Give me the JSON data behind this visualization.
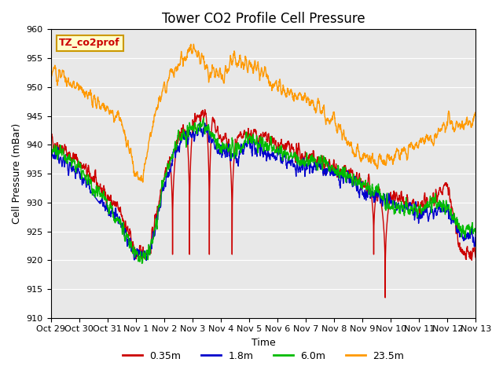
{
  "title": "Tower CO2 Profile Cell Pressure",
  "ylabel": "Cell Pressure (mBar)",
  "xlabel": "Time",
  "xlim_days": 15,
  "ylim": [
    910,
    960
  ],
  "yticks": [
    910,
    915,
    920,
    925,
    930,
    935,
    940,
    945,
    950,
    955,
    960
  ],
  "xtick_labels": [
    "Oct 29",
    "Oct 30",
    "Oct 31",
    "Nov 1",
    "Nov 2",
    "Nov 3",
    "Nov 4",
    "Nov 5",
    "Nov 6",
    "Nov 7",
    "Nov 8",
    "Nov 9",
    "Nov 10",
    "Nov 11",
    "Nov 12",
    "Nov 13"
  ],
  "legend_labels": [
    "0.35m",
    "1.8m",
    "6.0m",
    "23.5m"
  ],
  "legend_colors": [
    "#cc0000",
    "#0000cc",
    "#00bb00",
    "#ff9900"
  ],
  "background_color": "#e8e8e8",
  "annotation_label": "TZ_co2prof",
  "annotation_bg": "#ffffcc",
  "annotation_border": "#cc9900",
  "title_fontsize": 12,
  "axis_fontsize": 9,
  "tick_fontsize": 8
}
